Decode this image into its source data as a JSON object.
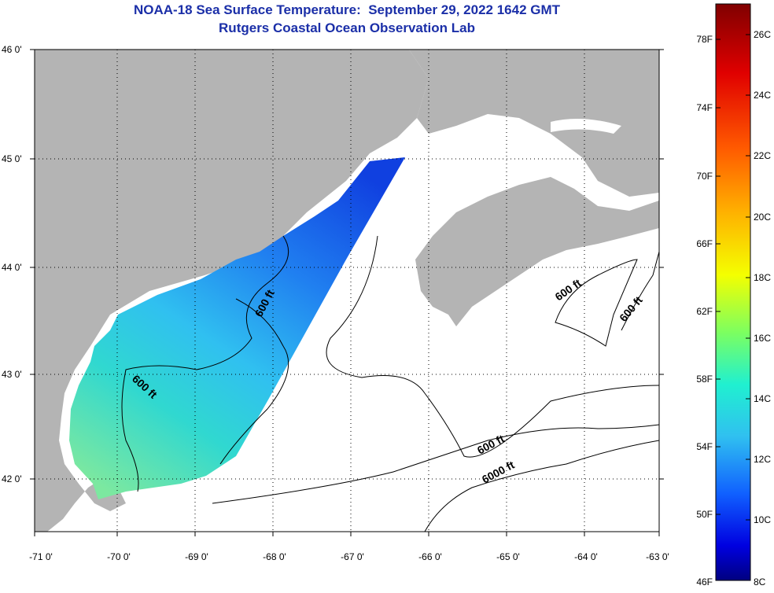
{
  "title": {
    "line1": "NOAA-18 Sea Surface Temperature:  September 29, 2022 1642 GMT",
    "line2": "Rutgers Coastal Ocean Observation Lab"
  },
  "map": {
    "lon_labels": [
      "-71 0'",
      "-70 0'",
      "-69 0'",
      "-68 0'",
      "-67 0'",
      "-66 0'",
      "-65 0'",
      "-64 0'",
      "-63 0'"
    ],
    "lat_labels": [
      "46 0'",
      "45 0'",
      "44 0'",
      "43 0'",
      "42 0'"
    ],
    "contour_labels": [
      "600 ft",
      "600 ft",
      "600 ft",
      "600 ft",
      "600 ft",
      "6000 ft"
    ],
    "colors": {
      "land": "#b4b4b4",
      "ocean": "#ffffff",
      "grid": "#000000",
      "coast": "#000000"
    }
  },
  "colorbar": {
    "fahrenheit": [
      "78F",
      "74F",
      "70F",
      "66F",
      "62F",
      "58F",
      "54F",
      "50F",
      "46F"
    ],
    "celsius": [
      "26C",
      "24C",
      "22C",
      "20C",
      "18C",
      "16C",
      "14C",
      "12C",
      "10C",
      "8C"
    ],
    "range_c": [
      8,
      27
    ]
  }
}
